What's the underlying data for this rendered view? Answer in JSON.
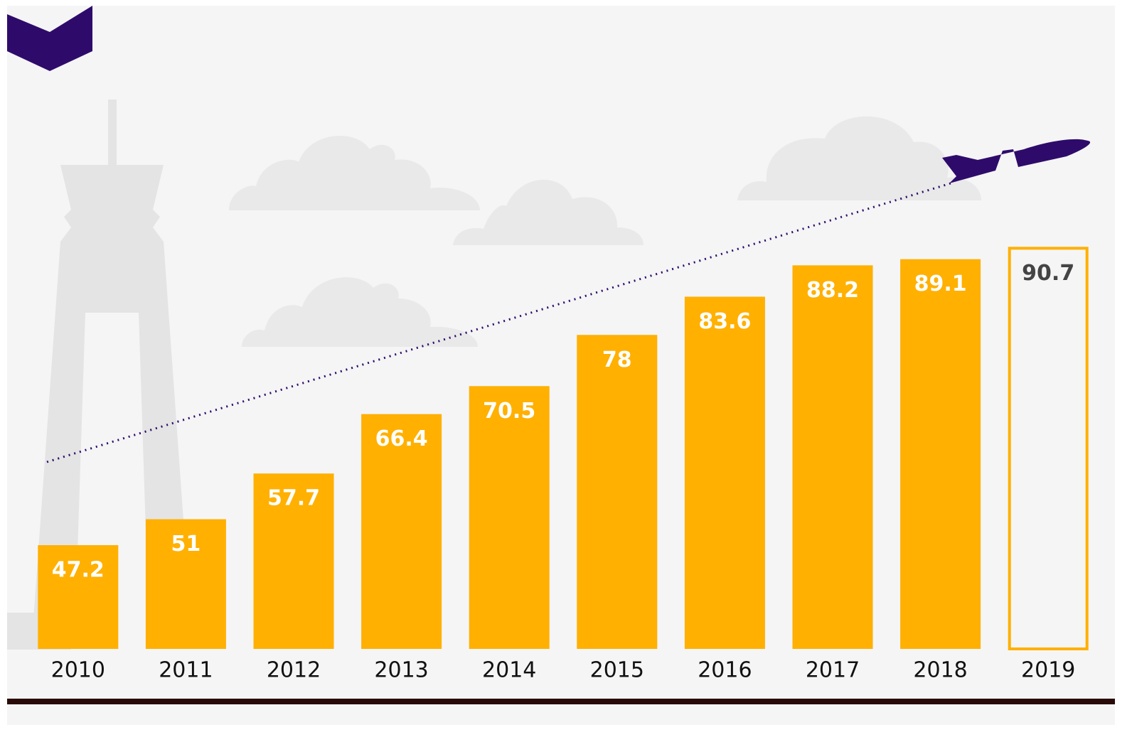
{
  "chart_data": {
    "type": "bar",
    "categories": [
      "2010",
      "2011",
      "2012",
      "2013",
      "2014",
      "2015",
      "2016",
      "2017",
      "2018",
      "2019"
    ],
    "values": [
      47.2,
      51,
      57.7,
      66.4,
      70.5,
      78,
      83.6,
      88.2,
      89.1,
      90.7
    ],
    "color": "#ffb000",
    "hollow_last": true,
    "ylim": [
      32,
      95
    ]
  }
}
